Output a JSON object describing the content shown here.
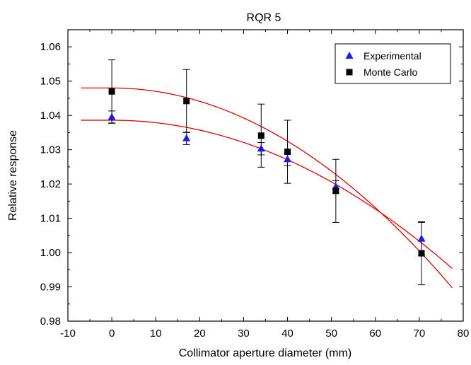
{
  "chart_data": {
    "type": "scatter",
    "title": "RQR 5",
    "xlabel": "Collimator aperture diameter (mm)",
    "ylabel": "Relative response",
    "xlim": [
      -10,
      80
    ],
    "ylim": [
      0.98,
      1.065
    ],
    "xticks": [
      -10,
      0,
      10,
      20,
      30,
      40,
      50,
      60,
      70,
      80
    ],
    "xtick_labels": [
      "-10",
      "0",
      "10",
      "20",
      "30",
      "40",
      "50",
      "60",
      "70",
      "80"
    ],
    "yticks": [
      0.98,
      0.99,
      1.0,
      1.01,
      1.02,
      1.03,
      1.04,
      1.05,
      1.06
    ],
    "ytick_labels": [
      "0.98",
      "0.99",
      "1.00",
      "1.01",
      "1.02",
      "1.03",
      "1.04",
      "1.05",
      "1.06"
    ],
    "grid": false,
    "legend_position": "top-right",
    "series": [
      {
        "name": "Experimental",
        "marker": "triangle",
        "color": "#1a1aff",
        "x": [
          0,
          17,
          34,
          40,
          51,
          70.5
        ],
        "y": [
          1.0395,
          1.0333,
          1.0303,
          1.0272,
          1.0192,
          1.004
        ],
        "yerr": [
          0.0018,
          0.0018,
          0.0018,
          0.0018,
          0.0018,
          0.0048
        ]
      },
      {
        "name": "Monte Carlo",
        "marker": "square",
        "color": "#000000",
        "x": [
          0,
          17,
          34,
          40,
          51,
          70.5
        ],
        "y": [
          1.047,
          1.0442,
          1.0341,
          1.0294,
          1.018,
          0.9998
        ],
        "yerr": [
          0.0092,
          0.0092,
          0.0092,
          0.0092,
          0.0092,
          0.0092
        ]
      }
    ],
    "fits": [
      {
        "color": "#e00000",
        "x_range": [
          -7,
          77.5
        ],
        "y0": 1.0386,
        "curvature": 7.2e-06,
        "a": 1.0386,
        "b": 7.2e-06
      },
      {
        "color": "#e00000",
        "x_range": [
          -7,
          77.5
        ],
        "y0": 1.048,
        "curvature": 9.7e-06,
        "a": 1.048,
        "b": 9.7e-06
      }
    ]
  }
}
